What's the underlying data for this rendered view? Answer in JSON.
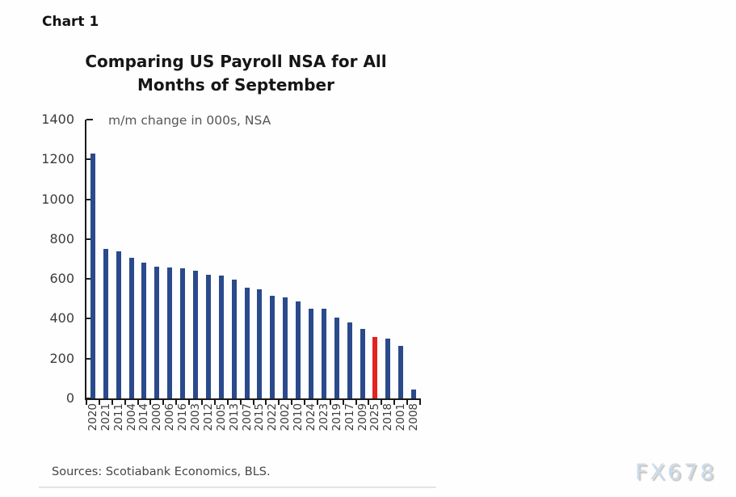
{
  "page": {
    "chart_label": "Chart 1",
    "sources": "Sources: Scotiabank Economics, BLS.",
    "watermark": "FX678"
  },
  "chart_data": {
    "type": "bar",
    "title": "Comparing US Payroll NSA for All Months of September",
    "title_lines": [
      "Comparing US Payroll NSA for All",
      "Months of September"
    ],
    "subtitle": "m/m change in 000s, NSA",
    "categories": [
      "2020",
      "2021",
      "2011",
      "2004",
      "2014",
      "2000",
      "2006",
      "2016",
      "2003",
      "2012",
      "2005",
      "2013",
      "2007",
      "2015",
      "2022",
      "2002",
      "2010",
      "2024",
      "2023",
      "2019",
      "2017",
      "2009",
      "2025",
      "2018",
      "2001",
      "2008"
    ],
    "values": [
      1230,
      751,
      738,
      706,
      680,
      661,
      659,
      654,
      643,
      619,
      616,
      598,
      555,
      547,
      515,
      506,
      485,
      452,
      450,
      407,
      381,
      350,
      310,
      299,
      262,
      46
    ],
    "highlight_category": "2025",
    "highlight_value": 310,
    "bar_color": "#2a4a8c",
    "highlight_color": "#e42222",
    "xlabel": "",
    "ylabel": "",
    "ylim": [
      0,
      1400
    ],
    "yticks": [
      0,
      200,
      400,
      600,
      800,
      1000,
      1200,
      1400
    ],
    "grid": false,
    "legend": false,
    "sort_order": "descending"
  }
}
